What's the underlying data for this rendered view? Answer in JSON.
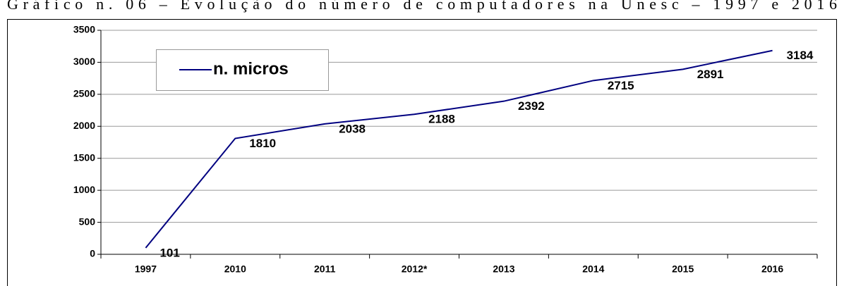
{
  "chart_data": {
    "type": "line",
    "title": "Gráfico n. 06 – Evolução do número de computadores na Unesc – 1997 e 2016",
    "categories": [
      "1997",
      "2010",
      "2011",
      "2012*",
      "2013",
      "2014",
      "2015",
      "2016"
    ],
    "series": [
      {
        "name": "n. micros",
        "color": "#000080",
        "values": [
          101,
          1810,
          2038,
          2188,
          2392,
          2715,
          2891,
          3184
        ]
      }
    ],
    "ylim": [
      0,
      3500
    ],
    "yticks": [
      0,
      500,
      1000,
      1500,
      2000,
      2500,
      3000,
      3500
    ],
    "grid": true,
    "legend": "top-left"
  }
}
